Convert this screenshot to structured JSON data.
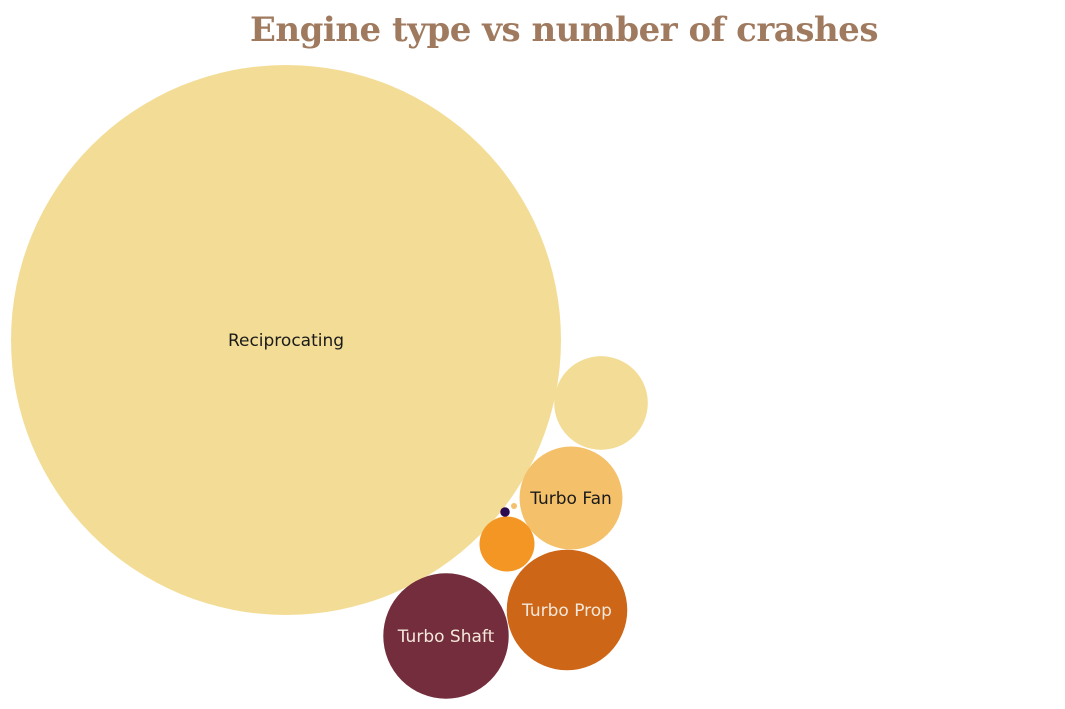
{
  "chart_data": {
    "type": "bubble",
    "title": "Engine type vs number of crashes",
    "title_color": "#a07a5f",
    "series": [
      {
        "label": "Reciprocating",
        "value": 100,
        "color": "#f3dd96",
        "label_color": "#1a1a1a"
      },
      {
        "label": "",
        "value": 2.9,
        "color": "#f3dd96",
        "label_color": "#1a1a1a"
      },
      {
        "label": "Turbo Fan",
        "value": 3.5,
        "color": "#f4c069",
        "label_color": "#1a1a1a"
      },
      {
        "label": "Turbo Prop",
        "value": 4.8,
        "color": "#cd6616",
        "label_color": "#f4e8dc"
      },
      {
        "label": "Turbo Shaft",
        "value": 5.2,
        "color": "#732d3c",
        "label_color": "#f4e8dc"
      },
      {
        "label": "",
        "value": 1.0,
        "color": "#f39624",
        "label_color": "#1a1a1a"
      },
      {
        "label": "",
        "value": 0.03,
        "color": "#2c0a4f",
        "label_color": "#1a1a1a"
      },
      {
        "label": "",
        "value": 0.01,
        "color": "#f4c069",
        "label_color": "#1a1a1a"
      }
    ]
  }
}
